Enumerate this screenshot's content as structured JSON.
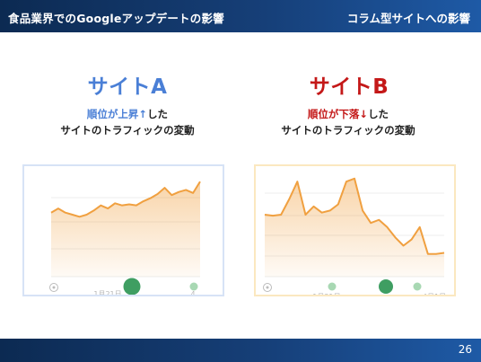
{
  "header": {
    "title": "食品業界でのGoogleアップデートの影響",
    "section": "コラム型サイトへの影響"
  },
  "site_a": {
    "title": "サイトA",
    "line1_prefix": "順位が上昇",
    "line1_arrow": "↑",
    "line1_suffix": "した",
    "line2": "サイトのトラフィックの変動"
  },
  "site_b": {
    "title": "サイトB",
    "line1_prefix": "順位が下落",
    "line1_arrow": "↓",
    "line1_suffix": "した",
    "line2": "サイトのトラフィックの変動"
  },
  "chart_data": [
    {
      "type": "area",
      "series": [
        {
          "values": [
            0.62,
            0.66,
            0.62,
            0.6,
            0.58,
            0.6,
            0.64,
            0.69,
            0.66,
            0.71,
            0.69,
            0.7,
            0.69,
            0.73,
            0.76,
            0.8,
            0.86,
            0.79,
            0.82,
            0.84,
            0.81,
            0.92
          ]
        }
      ],
      "tick_labels": [
        "1月21日",
        "4"
      ],
      "markers": [
        "sync",
        "annotation",
        "annotation"
      ],
      "grid": true,
      "color": "#f0a040"
    },
    {
      "type": "area",
      "series": [
        {
          "values": [
            0.6,
            0.59,
            0.6,
            0.75,
            0.92,
            0.6,
            0.68,
            0.62,
            0.64,
            0.7,
            0.92,
            0.95,
            0.64,
            0.52,
            0.55,
            0.48,
            0.38,
            0.3,
            0.36,
            0.48,
            0.22,
            0.22,
            0.23
          ]
        }
      ],
      "tick_labels": [
        "1月21日",
        "4月1日"
      ],
      "markers": [
        "sync",
        "annotation",
        "annotation",
        "annotation"
      ],
      "grid": true,
      "color": "#f0a040"
    }
  ],
  "footer": {
    "page_number": "26"
  }
}
